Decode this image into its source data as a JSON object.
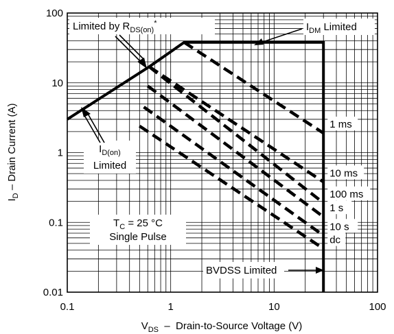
{
  "chart_data": {
    "type": "line",
    "xscale": "log",
    "yscale": "log",
    "xlim": [
      0.1,
      100
    ],
    "ylim": [
      0.01,
      100
    ],
    "x_ticks": [
      "0.1",
      "1",
      "10",
      "100"
    ],
    "y_ticks": [
      "0.01",
      "0.1",
      "1",
      "10",
      "100"
    ],
    "xlabel": {
      "main": "V",
      "sub": "DS",
      "rest": "  –  Drain-to-Source Voltage (V)"
    },
    "ylabel": {
      "main": "I",
      "sub": "D",
      "rest": " – Drain Current (A)"
    },
    "grid": true,
    "boundary": {
      "description_points": [
        [
          0.1,
          3
        ],
        [
          0.2,
          5.8
        ],
        [
          0.62,
          17
        ],
        [
          1.35,
          38
        ],
        [
          30,
          38
        ],
        [
          30,
          0.01
        ]
      ]
    },
    "series": [
      {
        "name": "1 ms",
        "points": [
          [
            1.35,
            38
          ],
          [
            30,
            1.9
          ]
        ]
      },
      {
        "name": "10 ms",
        "points": [
          [
            0.62,
            17
          ],
          [
            30,
            0.38
          ]
        ]
      },
      {
        "name": "100 ms",
        "points": [
          [
            0.62,
            17
          ],
          [
            30,
            0.19
          ]
        ]
      },
      {
        "name": "1 s",
        "points": [
          [
            0.6,
            9
          ],
          [
            30,
            0.12
          ]
        ]
      },
      {
        "name": "10 s",
        "points": [
          [
            0.55,
            4.5
          ],
          [
            30,
            0.065
          ]
        ]
      },
      {
        "name": "dc",
        "points": [
          [
            0.5,
            2.4
          ],
          [
            30,
            0.042
          ]
        ]
      }
    ],
    "annotations": {
      "rds_on": {
        "main": "Limited by R",
        "sub": "DS(on)",
        "sup": "*"
      },
      "idm": {
        "main": "I",
        "sub": "DM",
        "rest": " Limited"
      },
      "id_on": {
        "main": "I",
        "sub": "D(on)",
        "line2": "Limited"
      },
      "tc": {
        "main": "T",
        "sub": "C",
        "rest": " = 25 °C",
        "line2": "Single Pulse"
      },
      "bvdss": "BVDSS Limited"
    }
  }
}
